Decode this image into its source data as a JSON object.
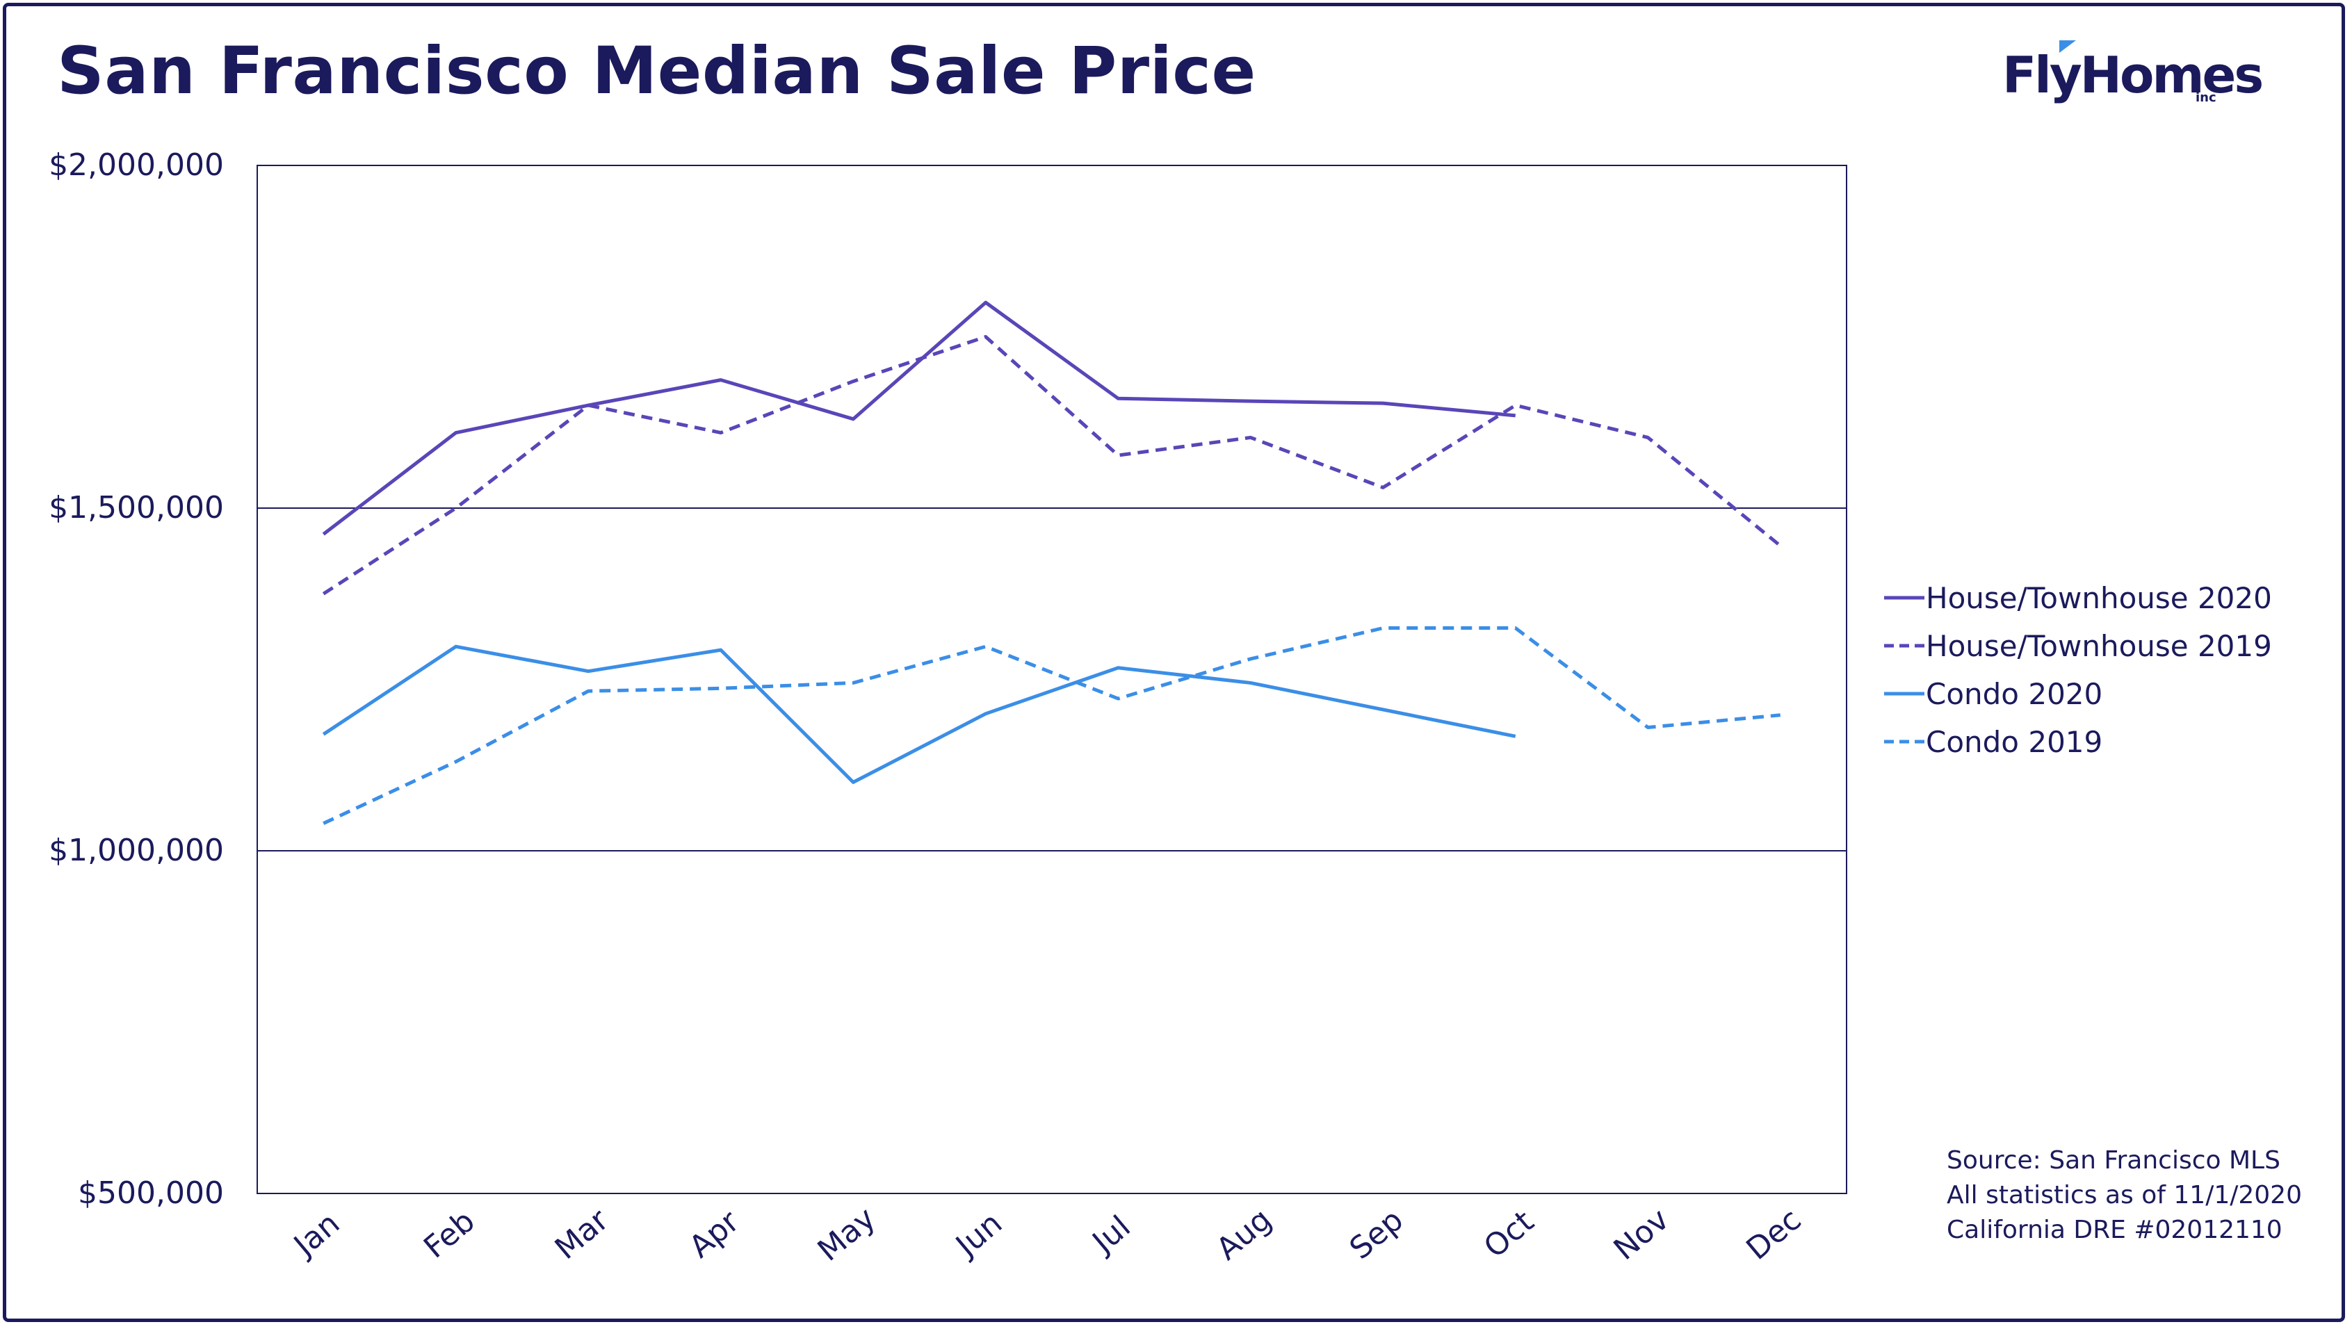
{
  "title": "San Francisco Median Sale Price",
  "logo": {
    "name": "FlyHomes",
    "suffix": "inc"
  },
  "source_lines": [
    "Source: San Francisco MLS",
    "All statistics as of 11/1/2020",
    "California DRE #02012110"
  ],
  "colors": {
    "navy": "#1b1a5c",
    "purple": "#5a45b8",
    "blue": "#3b8ee6"
  },
  "chart_data": {
    "type": "line",
    "title": "San Francisco Median Sale Price",
    "categories": [
      "Jan",
      "Feb",
      "Mar",
      "Apr",
      "May",
      "Jun",
      "Jul",
      "Aug",
      "Sep",
      "Oct",
      "Nov",
      "Dec"
    ],
    "ylim": [
      500000,
      2000000
    ],
    "yticks": [
      500000,
      1000000,
      1500000,
      2000000
    ],
    "ytick_labels": [
      "$500,000",
      "$1,000,000",
      "$1,500,000",
      "$2,000,000"
    ],
    "grid": "horizontal",
    "legend_position": "right",
    "series": [
      {
        "name": "House/Townhouse 2020",
        "color": "#5a45b8",
        "dash": false,
        "values": [
          1462000,
          1610000,
          1650000,
          1687000,
          1630000,
          1800000,
          1660000,
          1656000,
          1653000,
          1635000,
          null,
          null
        ]
      },
      {
        "name": "House/Townhouse 2019",
        "color": "#5a45b8",
        "dash": true,
        "values": [
          1375000,
          1500000,
          1650000,
          1610000,
          1685000,
          1750000,
          1577000,
          1603000,
          1530000,
          1650000,
          1603000,
          1445000
        ]
      },
      {
        "name": "Condo 2020",
        "color": "#3b8ee6",
        "dash": false,
        "values": [
          1170000,
          1298000,
          1262000,
          1293000,
          1100000,
          1200000,
          1267000,
          1245000,
          1206000,
          1167000,
          null,
          null
        ]
      },
      {
        "name": "Condo 2019",
        "color": "#3b8ee6",
        "dash": true,
        "values": [
          1040000,
          1130000,
          1233000,
          1237000,
          1245000,
          1298000,
          1222000,
          1280000,
          1325000,
          1325000,
          1180000,
          1198000
        ]
      }
    ]
  }
}
